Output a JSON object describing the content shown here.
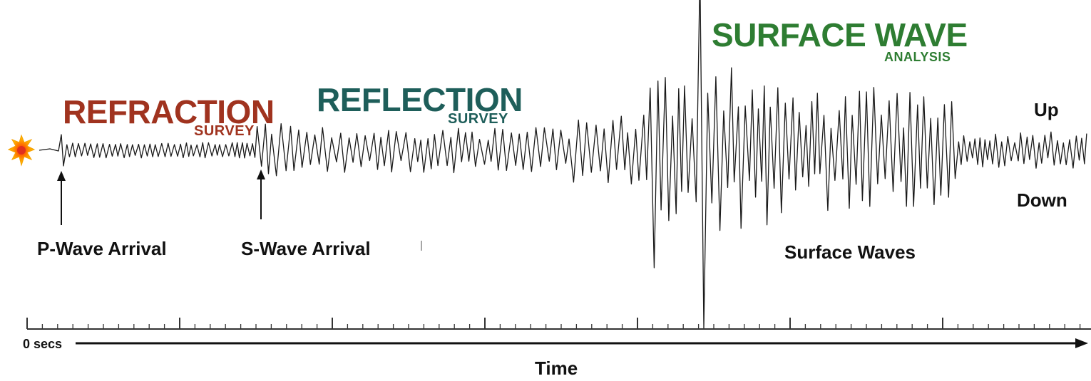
{
  "colors": {
    "refraction": "#A0331F",
    "reflection": "#1E5E5A",
    "surface": "#2E7D32",
    "trace": "#1a1a1a",
    "source_burst": "#FF8C00"
  },
  "labels": {
    "refraction_title": "REFRACTION",
    "refraction_sub": "SURVEY",
    "reflection_title": "REFLECTION",
    "reflection_sub": "SURVEY",
    "surface_title": "SURFACE WAVE",
    "surface_sub": "ANALYSIS",
    "up": "Up",
    "down": "Down",
    "p_wave": "P-Wave Arrival",
    "s_wave": "S-Wave Arrival",
    "surface_waves": "Surface Waves",
    "zero_secs": "0 secs",
    "time": "Time"
  },
  "icons": {
    "source": "explosion-icon",
    "p_arrow": "arrow-up-icon",
    "s_arrow": "arrow-up-icon",
    "time_arrow": "arrow-right-icon"
  }
}
